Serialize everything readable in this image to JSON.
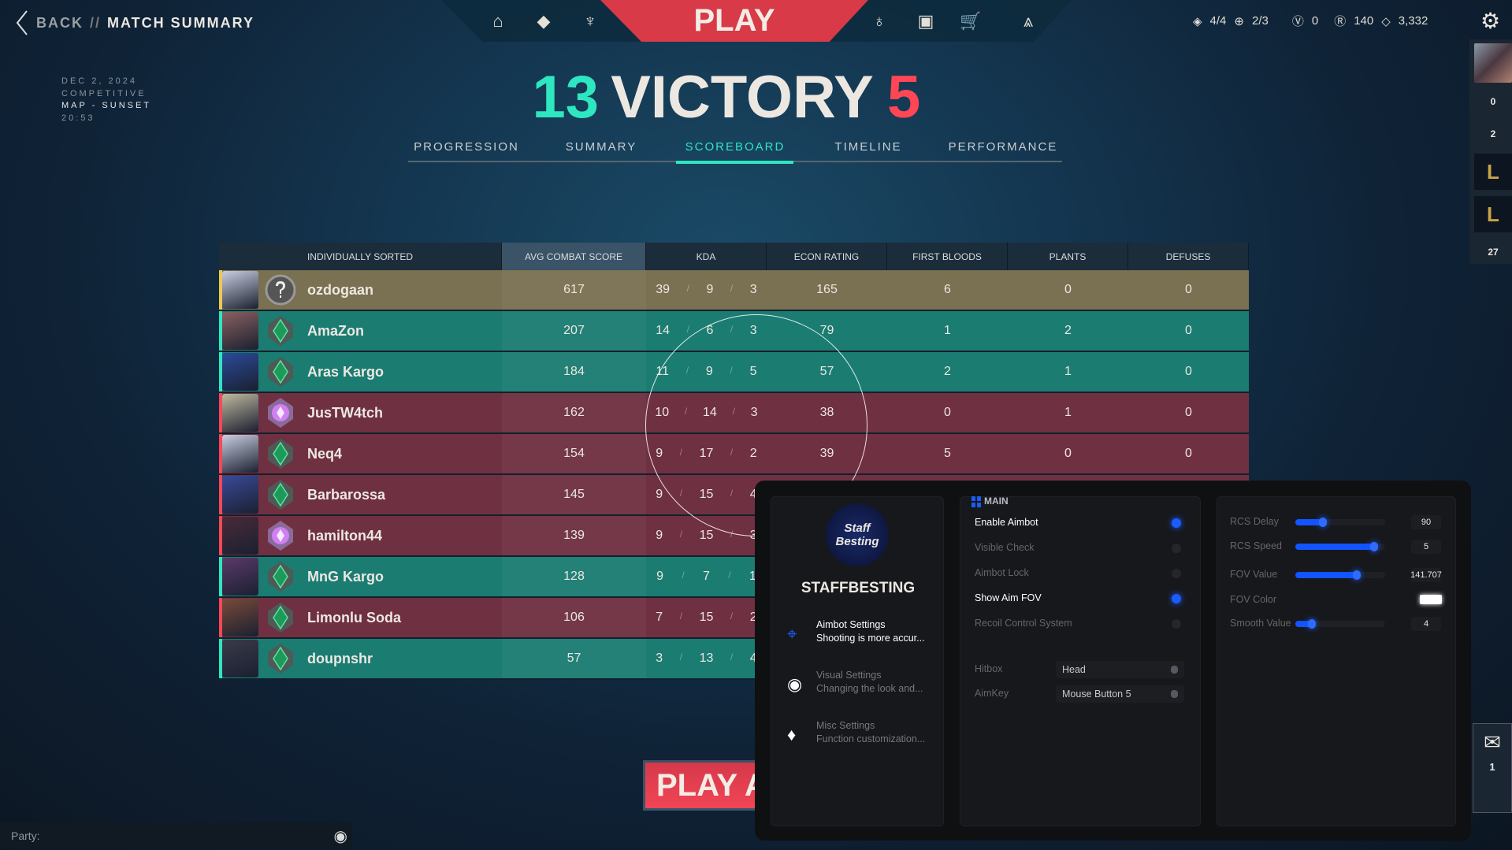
{
  "header": {
    "back": "BACK",
    "sep": "//",
    "title": "MATCH SUMMARY",
    "play": "PLAY",
    "nav_icons": [
      "home-icon",
      "agents-icon",
      "career-icon",
      "battlepass-icon",
      "collection-icon",
      "store-icon",
      "rank-icon"
    ]
  },
  "currency": {
    "missions": "4/4",
    "weekly": "2/3",
    "vp": "0",
    "radianite": "140",
    "kingdom": "3,332"
  },
  "match": {
    "date": "DEC 2, 2024",
    "mode": "COMPETITIVE",
    "map": "MAP - SUNSET",
    "duration": "20:53"
  },
  "score": {
    "team": "13",
    "result": "VICTORY",
    "enemy": "5",
    "team_color": "#2ee6c0",
    "enemy_color": "#ff4655"
  },
  "tabs": [
    "PROGRESSION",
    "SUMMARY",
    "SCOREBOARD",
    "TIMELINE",
    "PERFORMANCE"
  ],
  "active_tab": "SCOREBOARD",
  "table": {
    "headers": [
      "INDIVIDUALLY SORTED",
      "AVG COMBAT SCORE",
      "KDA",
      "ECON RATING",
      "FIRST BLOODS",
      "PLANTS",
      "DEFUSES"
    ],
    "rows": [
      {
        "name": "ozdogaan",
        "team": "self",
        "rank": "unranked",
        "acs": "617",
        "k": "39",
        "d": "9",
        "a": "3",
        "econ": "165",
        "fb": "6",
        "plants": "0",
        "defuses": "0"
      },
      {
        "name": "AmaZon",
        "team": "ally",
        "rank": "emerald",
        "acs": "207",
        "k": "14",
        "d": "6",
        "a": "3",
        "econ": "79",
        "fb": "1",
        "plants": "2",
        "defuses": "0"
      },
      {
        "name": "Aras Kargo",
        "team": "ally",
        "rank": "emerald",
        "acs": "184",
        "k": "11",
        "d": "9",
        "a": "5",
        "econ": "57",
        "fb": "2",
        "plants": "1",
        "defuses": "0"
      },
      {
        "name": "JusTW4tch",
        "team": "enemy",
        "rank": "ascendant",
        "acs": "162",
        "k": "10",
        "d": "14",
        "a": "3",
        "econ": "38",
        "fb": "0",
        "plants": "1",
        "defuses": "0"
      },
      {
        "name": "Neq4",
        "team": "enemy",
        "rank": "emerald",
        "acs": "154",
        "k": "9",
        "d": "17",
        "a": "2",
        "econ": "39",
        "fb": "5",
        "plants": "0",
        "defuses": "0"
      },
      {
        "name": "Barbarossa",
        "team": "enemy",
        "rank": "emerald",
        "acs": "145",
        "k": "9",
        "d": "15",
        "a": "4"
      },
      {
        "name": "hamilton44",
        "team": "enemy",
        "rank": "ascendant",
        "acs": "139",
        "k": "9",
        "d": "15",
        "a": "3"
      },
      {
        "name": "MnG Kargo",
        "team": "ally",
        "rank": "emerald",
        "acs": "128",
        "k": "9",
        "d": "7",
        "a": "1"
      },
      {
        "name": "Limonlu Soda",
        "team": "enemy",
        "rank": "emerald",
        "acs": "106",
        "k": "7",
        "d": "15",
        "a": "2"
      },
      {
        "name": "doupnshr",
        "team": "ally",
        "rank": "emerald",
        "acs": "57",
        "k": "3",
        "d": "13",
        "a": "4"
      }
    ]
  },
  "row_colors": {
    "self": "#7a7052",
    "ally": "#1b7c72",
    "enemy": "#6f3042"
  },
  "stripe_colors": {
    "self": "#f0c850",
    "ally": "#2ee6c0",
    "enemy": "#ff4655"
  },
  "play_again": "PLAY AGAIN",
  "party": {
    "label": "Party:"
  },
  "sidebar": {
    "count1": "0",
    "count2": "2",
    "count3": "27",
    "mail_count": "1"
  },
  "cheat": {
    "logo_text": "Staff Besting",
    "brand": "STAFFBESTING",
    "menu": [
      {
        "title": "Aimbot Settings",
        "desc": "Shooting is more accur...",
        "icon": "crosshair-icon",
        "active": true
      },
      {
        "title": "Visual Settings",
        "desc": "Changing the look and...",
        "icon": "eye-icon",
        "active": false
      },
      {
        "title": "Misc Settings",
        "desc": "Function customization...",
        "icon": "paint-bucket-icon",
        "active": false
      }
    ],
    "section": "MAIN",
    "toggles": [
      {
        "label": "Enable Aimbot",
        "on": true
      },
      {
        "label": "Visible Check",
        "on": false
      },
      {
        "label": "Aimbot Lock",
        "on": false
      },
      {
        "label": "Show Aim FOV",
        "on": true
      },
      {
        "label": "Recoil Control System",
        "on": false
      }
    ],
    "dropdowns": [
      {
        "label": "Hitbox",
        "value": "Head"
      },
      {
        "label": "AimKey",
        "value": "Mouse Button 5"
      }
    ],
    "sliders": [
      {
        "label": "RCS Delay",
        "value": "90",
        "fill": 0.31
      },
      {
        "label": "RCS Speed",
        "value": "5",
        "fill": 0.88
      },
      {
        "label": "FOV Value",
        "value": "141.707",
        "fill": 0.68
      },
      {
        "label": "Smooth Value",
        "value": "4",
        "fill": 0.18
      }
    ],
    "fov_color": {
      "label": "FOV Color",
      "value": "#ffffff"
    },
    "accent": "#1a5cff"
  }
}
